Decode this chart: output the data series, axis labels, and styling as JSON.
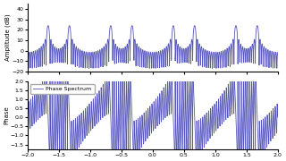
{
  "title": "",
  "xlim": [
    -2.0,
    2.0
  ],
  "amp_ylim": [
    -20,
    45
  ],
  "phase_ylim": [
    -1.75,
    2.0
  ],
  "amp_yticks": [
    -20,
    -10,
    0,
    10,
    20,
    30,
    40
  ],
  "phase_yticks": [
    -1.5,
    -1.0,
    -0.5,
    0.0,
    0.5,
    1.0,
    1.5,
    2.0
  ],
  "xticks": [
    -2.0,
    -1.5,
    -1.0,
    -0.5,
    0.0,
    0.5,
    1.0,
    1.5,
    2.0
  ],
  "amp_ylabel": "Amplitude (dB)",
  "phase_ylabel": "Phase",
  "line_color": "#5555bb",
  "legend_label": "Phase Spectrum",
  "f0": 0.33,
  "N": 32
}
